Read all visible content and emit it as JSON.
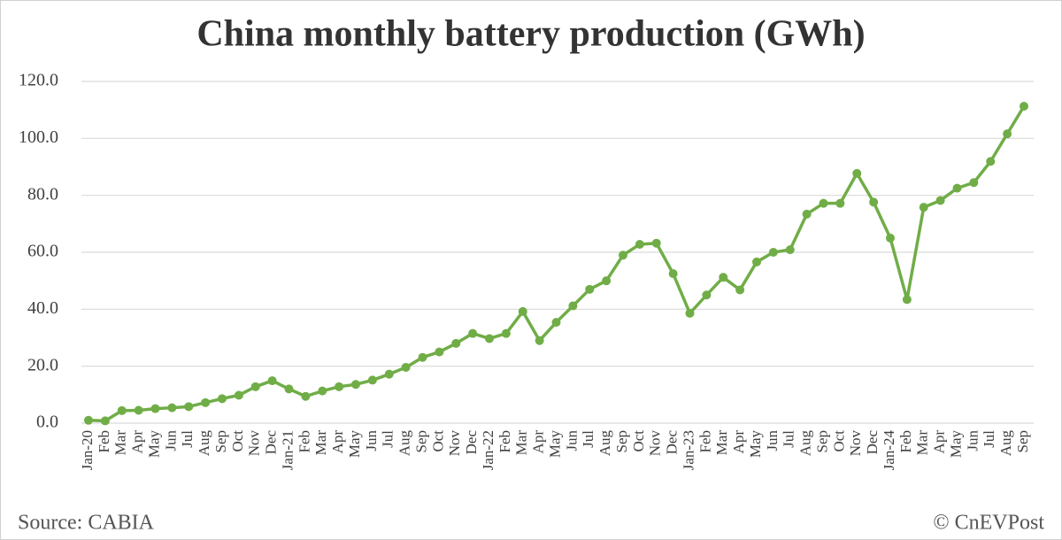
{
  "chart_data": {
    "type": "line",
    "title": "China monthly battery production (GWh)",
    "categories": [
      "Jan-20",
      "Feb",
      "Mar",
      "Apr",
      "May",
      "Jun",
      "Jul",
      "Aug",
      "Sep",
      "Oct",
      "Nov",
      "Dec",
      "Jan-21",
      "Feb",
      "Mar",
      "Apr",
      "May",
      "Jun",
      "Jul",
      "Aug",
      "Sep",
      "Oct",
      "Nov",
      "Dec",
      "Jan-22",
      "Feb",
      "Mar",
      "Apr",
      "May",
      "Jun",
      "Jul",
      "Aug",
      "Sep",
      "Oct",
      "Nov",
      "Dec",
      "Jan-23",
      "Feb",
      "Mar",
      "Apr",
      "May",
      "Jun",
      "Jul",
      "Aug",
      "Sep",
      "Oct",
      "Nov",
      "Dec",
      "Jan-24",
      "Feb",
      "Mar",
      "Apr",
      "May",
      "Jun",
      "Jul",
      "Aug",
      "Sep"
    ],
    "series": [
      {
        "name": "Battery production",
        "color": "#70ad47",
        "values": [
          1.0,
          0.8,
          4.4,
          4.5,
          5.1,
          5.4,
          5.8,
          7.2,
          8.6,
          9.8,
          12.8,
          14.9,
          12.0,
          9.4,
          11.3,
          12.8,
          13.6,
          15.1,
          17.2,
          19.6,
          23.1,
          25.0,
          28.0,
          31.5,
          29.7,
          31.5,
          39.2,
          29.0,
          35.4,
          41.2,
          47.0,
          50.0,
          59.0,
          62.8,
          63.2,
          52.5,
          38.6,
          45.0,
          51.2,
          46.8,
          56.6,
          60.0,
          60.9,
          73.4,
          77.2,
          77.2,
          87.7,
          77.6,
          65.0,
          43.4,
          75.8,
          78.2,
          82.5,
          84.5,
          91.9,
          101.6,
          111.3
        ]
      }
    ],
    "ylim": [
      0,
      120
    ],
    "yticks": [
      {
        "value": 0,
        "label": "0.0"
      },
      {
        "value": 20,
        "label": "20.0"
      },
      {
        "value": 40,
        "label": "40.0"
      },
      {
        "value": 60,
        "label": "60.0"
      },
      {
        "value": 80,
        "label": "80.0"
      },
      {
        "value": 100,
        "label": "100.0"
      },
      {
        "value": 120,
        "label": "120.0"
      }
    ],
    "grid": true,
    "source": "Source: CABIA",
    "credit": "© CnEVPost"
  }
}
